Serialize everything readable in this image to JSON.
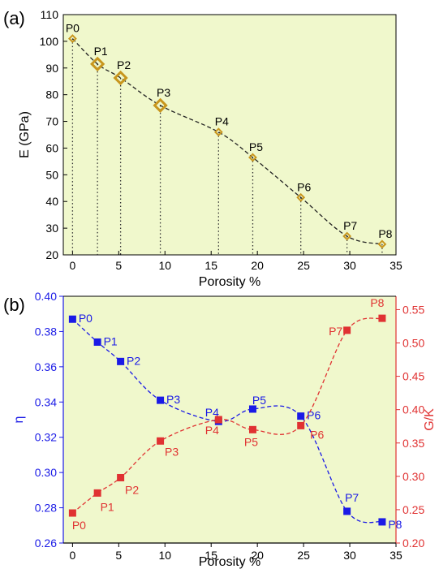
{
  "chart_data": [
    {
      "type": "scatter",
      "panel_label": "(a)",
      "xlabel": "Porosity %",
      "ylabel": "E (GPa)",
      "xlim": [
        -1,
        35
      ],
      "ylim": [
        20,
        110
      ],
      "xticks": [
        0,
        5,
        10,
        15,
        20,
        25,
        30,
        35
      ],
      "yticks": [
        20,
        30,
        40,
        50,
        60,
        70,
        80,
        90,
        100,
        110
      ],
      "background": "#f0f8cc",
      "marker_color": "#c8961e",
      "grid": false,
      "points": [
        {
          "label": "P0",
          "x": 0.0,
          "y": 101
        },
        {
          "label": "P1",
          "x": 2.7,
          "y": 91.5
        },
        {
          "label": "P2",
          "x": 5.2,
          "y": 86.3
        },
        {
          "label": "P3",
          "x": 9.5,
          "y": 76
        },
        {
          "label": "P4",
          "x": 15.8,
          "y": 66
        },
        {
          "label": "P5",
          "x": 19.5,
          "y": 56.5
        },
        {
          "label": "P6",
          "x": 24.7,
          "y": 41.5
        },
        {
          "label": "P7",
          "x": 29.7,
          "y": 27
        },
        {
          "label": "P8",
          "x": 33.5,
          "y": 24
        }
      ]
    },
    {
      "type": "scatter",
      "panel_label": "(b)",
      "xlabel": "Porosity %",
      "ylabel": "η",
      "ylabel_right": "G/K",
      "xlim": [
        -1,
        35
      ],
      "ylim": [
        0.26,
        0.4
      ],
      "ylim_right": [
        0.2,
        0.57
      ],
      "xticks": [
        0,
        5,
        10,
        15,
        20,
        25,
        30,
        35
      ],
      "yticks": [
        0.26,
        0.28,
        0.3,
        0.32,
        0.34,
        0.36,
        0.38,
        0.4
      ],
      "yticks_right": [
        0.2,
        0.25,
        0.3,
        0.35,
        0.4,
        0.45,
        0.5,
        0.55
      ],
      "background": "#f0f8cc",
      "grid": false,
      "left_color": "#1a1ae6",
      "right_color": "#e03232",
      "series": [
        {
          "axis": "left",
          "color": "#1a1ae6",
          "labels": [
            "P0",
            "P1",
            "P2",
            "P3",
            "P4",
            "P5",
            "P6",
            "P7",
            "P8"
          ],
          "x": [
            0.0,
            2.7,
            5.2,
            9.5,
            15.8,
            19.5,
            24.7,
            29.7,
            33.5
          ],
          "y": [
            0.387,
            0.374,
            0.363,
            0.341,
            0.329,
            0.336,
            0.332,
            0.278,
            0.272
          ]
        },
        {
          "axis": "right",
          "color": "#e03232",
          "labels": [
            "P0",
            "P1",
            "P2",
            "P3",
            "P4",
            "P5",
            "P6",
            "P7",
            "P8"
          ],
          "x": [
            0.0,
            2.7,
            5.2,
            9.5,
            15.8,
            19.5,
            24.7,
            29.7,
            33.5
          ],
          "y": [
            0.245,
            0.275,
            0.298,
            0.353,
            0.385,
            0.37,
            0.376,
            0.519,
            0.537
          ]
        }
      ]
    }
  ]
}
